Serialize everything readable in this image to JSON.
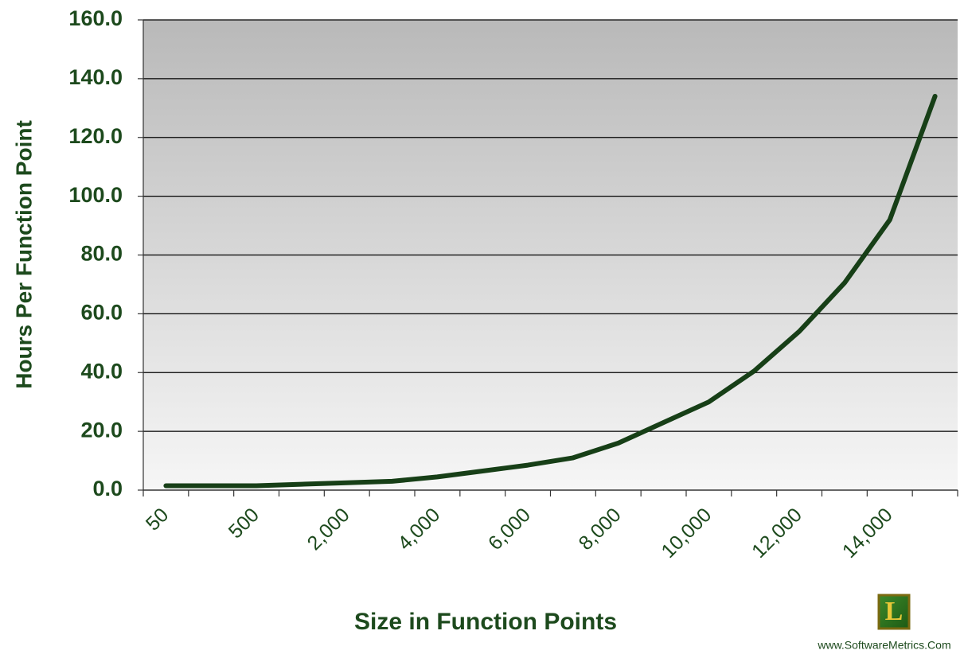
{
  "chart_data": {
    "type": "line",
    "y_label": "Hours Per Function Point",
    "x_label": "Size in Function Points",
    "categories": [
      "50",
      null,
      "500",
      null,
      "2,000",
      null,
      "4,000",
      null,
      "6,000",
      null,
      "8,000",
      null,
      "10,000",
      null,
      "12,000",
      null,
      "14,000",
      null
    ],
    "values": [
      1.5,
      1.5,
      1.5,
      2,
      2.5,
      3,
      4.5,
      6.5,
      8.5,
      11,
      16,
      23,
      30,
      40.5,
      54,
      70.5,
      92,
      134
    ],
    "color": "#173f17",
    "ylim": [
      0,
      160
    ],
    "yticks": [
      {
        "value": 0,
        "label": "0.0"
      },
      {
        "value": 20,
        "label": "20.0"
      },
      {
        "value": 40,
        "label": "40.0"
      },
      {
        "value": 60,
        "label": "60.0"
      },
      {
        "value": 80,
        "label": "80.0"
      },
      {
        "value": 100,
        "label": "100.0"
      },
      {
        "value": 120,
        "label": "120.0"
      },
      {
        "value": 140,
        "label": "140.0"
      },
      {
        "value": 160,
        "label": "160.0"
      }
    ],
    "grid": true,
    "logo": "L",
    "source": "www.SoftwareMetrics.Com"
  }
}
